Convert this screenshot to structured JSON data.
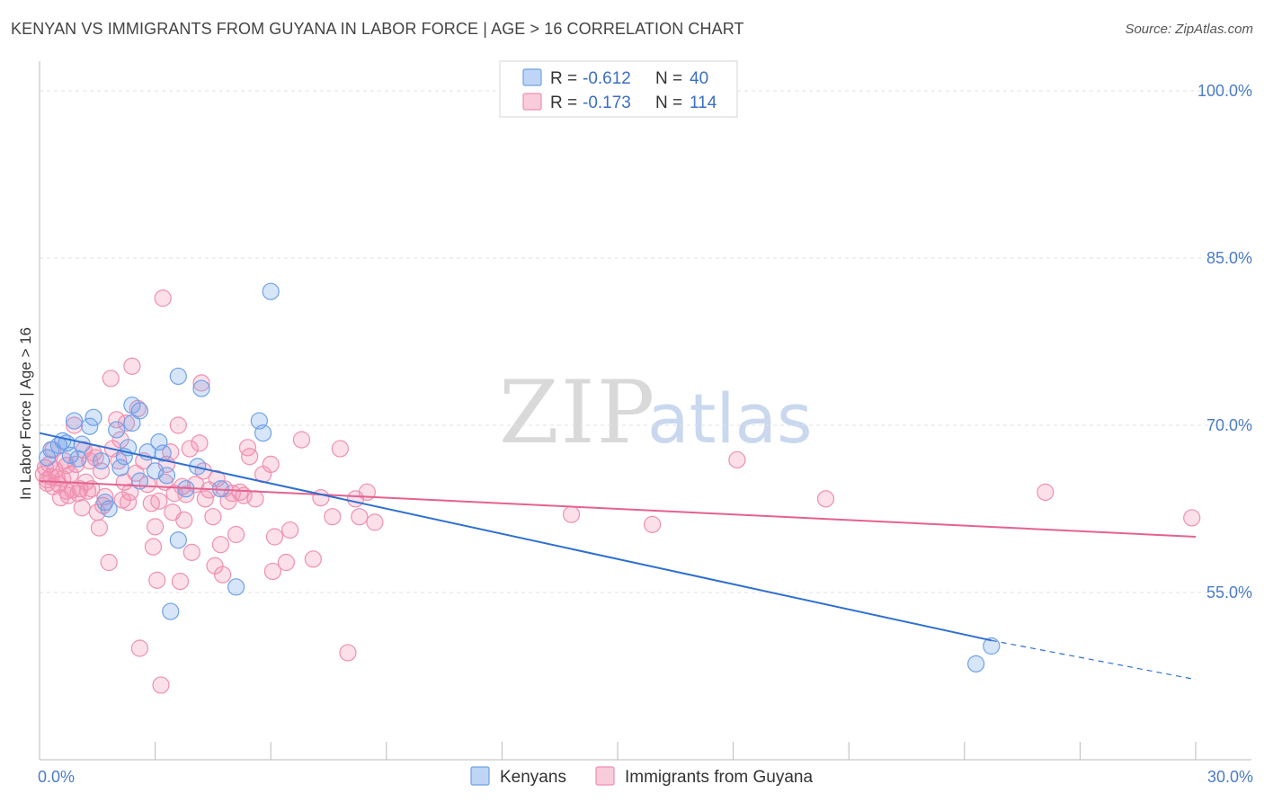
{
  "title": "KENYAN VS IMMIGRANTS FROM GUYANA IN LABOR FORCE | AGE > 16 CORRELATION CHART",
  "source": "Source: ZipAtlas.com",
  "watermark": {
    "zip": "ZIP",
    "atlas": "atlas"
  },
  "legend_top": [
    {
      "r_label": "R =",
      "r_value": "-0.612",
      "n_label": "N =",
      "n_value": "40",
      "color": "#6fa1e8"
    },
    {
      "r_label": "R =",
      "r_value": "-0.173",
      "n_label": "N =",
      "n_value": "114",
      "color": "#f08fb0"
    }
  ],
  "legend_bottom": [
    {
      "label": "Kenyans",
      "color": "#6fa1e8"
    },
    {
      "label": "Immigrants from Guyana",
      "color": "#f08fb0"
    }
  ],
  "chart_data": {
    "type": "scatter",
    "title": "KENYAN VS IMMIGRANTS FROM GUYANA IN LABOR FORCE | AGE > 16 CORRELATION CHART",
    "xlabel": "",
    "ylabel": "In Labor Force | Age > 16",
    "xlim": [
      0,
      30
    ],
    "ylim": [
      40,
      102.5
    ],
    "x_tick_labels": [
      {
        "value": 0,
        "label": "0.0%"
      },
      {
        "value": 30,
        "label": "30.0%"
      }
    ],
    "y_tick_labels": [
      {
        "value": 100,
        "label": "100.0%"
      },
      {
        "value": 85,
        "label": "85.0%"
      },
      {
        "value": 70,
        "label": "70.0%"
      },
      {
        "value": 55,
        "label": "55.0%"
      }
    ],
    "series": [
      {
        "name": "Kenyans",
        "color": "#6fa1e8",
        "line_color": "#2f6fd0",
        "trend": {
          "x0": 0,
          "y0": 69.3,
          "x1": 24.7,
          "y1": 50.7,
          "dash_to_x": 30,
          "dash_to_y": 47.2
        },
        "points": [
          [
            0.2,
            67.1
          ],
          [
            0.3,
            67.8
          ],
          [
            0.5,
            68.2
          ],
          [
            0.6,
            68.6
          ],
          [
            0.7,
            68.4
          ],
          [
            0.8,
            67.3
          ],
          [
            0.9,
            70.4
          ],
          [
            1.0,
            67.0
          ],
          [
            1.1,
            68.3
          ],
          [
            1.3,
            69.9
          ],
          [
            1.4,
            70.7
          ],
          [
            1.6,
            66.8
          ],
          [
            1.7,
            63.1
          ],
          [
            1.8,
            62.5
          ],
          [
            2.0,
            69.6
          ],
          [
            2.1,
            66.2
          ],
          [
            2.2,
            67.2
          ],
          [
            2.3,
            68.0
          ],
          [
            2.4,
            70.2
          ],
          [
            2.4,
            71.8
          ],
          [
            2.6,
            71.3
          ],
          [
            2.6,
            65.0
          ],
          [
            2.8,
            67.6
          ],
          [
            3.0,
            65.9
          ],
          [
            3.1,
            68.5
          ],
          [
            3.2,
            67.5
          ],
          [
            3.3,
            65.5
          ],
          [
            3.4,
            53.3
          ],
          [
            3.6,
            74.4
          ],
          [
            3.6,
            59.7
          ],
          [
            3.8,
            64.3
          ],
          [
            4.1,
            66.3
          ],
          [
            4.2,
            73.3
          ],
          [
            4.7,
            64.3
          ],
          [
            5.1,
            55.5
          ],
          [
            5.7,
            70.4
          ],
          [
            5.8,
            69.3
          ],
          [
            6.0,
            82.0
          ],
          [
            24.3,
            48.6
          ],
          [
            24.7,
            50.2
          ]
        ]
      },
      {
        "name": "Immigrants from Guyana",
        "color": "#f08fb0",
        "line_color": "#e4628e",
        "trend": {
          "x0": 0,
          "y0": 65.0,
          "x1": 30,
          "y1": 60.0
        },
        "points": [
          [
            0.1,
            65.6
          ],
          [
            0.15,
            66.2
          ],
          [
            0.2,
            65.1
          ],
          [
            0.2,
            64.8
          ],
          [
            0.25,
            66.5
          ],
          [
            0.3,
            65.4
          ],
          [
            0.35,
            64.5
          ],
          [
            0.4,
            66.0
          ],
          [
            0.45,
            65.3
          ],
          [
            0.5,
            64.7
          ],
          [
            0.55,
            63.5
          ],
          [
            0.6,
            65.2
          ],
          [
            0.65,
            66.8
          ],
          [
            0.7,
            64.1
          ],
          [
            0.75,
            63.7
          ],
          [
            0.8,
            65.6
          ],
          [
            0.85,
            64.2
          ],
          [
            0.9,
            70.0
          ],
          [
            0.95,
            66.5
          ],
          [
            1.0,
            63.9
          ],
          [
            1.05,
            64.3
          ],
          [
            1.1,
            62.6
          ],
          [
            1.15,
            67.8
          ],
          [
            1.2,
            64.9
          ],
          [
            1.25,
            64.1
          ],
          [
            1.3,
            66.8
          ],
          [
            1.35,
            64.3
          ],
          [
            1.4,
            67.5
          ],
          [
            1.5,
            62.2
          ],
          [
            1.55,
            60.8
          ],
          [
            1.6,
            65.9
          ],
          [
            1.65,
            62.8
          ],
          [
            1.7,
            63.6
          ],
          [
            1.8,
            57.7
          ],
          [
            1.85,
            74.2
          ],
          [
            1.9,
            67.9
          ],
          [
            2.0,
            70.5
          ],
          [
            2.05,
            66.8
          ],
          [
            2.1,
            68.7
          ],
          [
            2.15,
            63.3
          ],
          [
            2.2,
            64.9
          ],
          [
            2.3,
            63.1
          ],
          [
            2.35,
            64.0
          ],
          [
            2.4,
            75.3
          ],
          [
            2.5,
            65.7
          ],
          [
            2.55,
            71.5
          ],
          [
            2.6,
            50.0
          ],
          [
            2.7,
            66.8
          ],
          [
            2.8,
            64.7
          ],
          [
            2.9,
            63.0
          ],
          [
            2.95,
            59.1
          ],
          [
            3.0,
            60.9
          ],
          [
            3.05,
            56.1
          ],
          [
            3.1,
            63.2
          ],
          [
            3.15,
            46.7
          ],
          [
            3.2,
            81.4
          ],
          [
            3.3,
            66.5
          ],
          [
            3.4,
            67.6
          ],
          [
            3.45,
            62.2
          ],
          [
            3.5,
            63.9
          ],
          [
            3.6,
            70.0
          ],
          [
            3.65,
            56.0
          ],
          [
            3.7,
            64.5
          ],
          [
            3.75,
            61.5
          ],
          [
            3.8,
            63.8
          ],
          [
            3.9,
            67.9
          ],
          [
            3.95,
            58.6
          ],
          [
            4.05,
            64.7
          ],
          [
            4.15,
            68.4
          ],
          [
            4.2,
            73.8
          ],
          [
            4.3,
            63.4
          ],
          [
            4.4,
            64.2
          ],
          [
            4.5,
            61.8
          ],
          [
            4.55,
            57.4
          ],
          [
            4.6,
            65.2
          ],
          [
            4.7,
            59.3
          ],
          [
            4.75,
            56.6
          ],
          [
            4.8,
            64.3
          ],
          [
            4.9,
            63.2
          ],
          [
            5.0,
            63.9
          ],
          [
            5.1,
            60.2
          ],
          [
            5.2,
            64.0
          ],
          [
            5.3,
            63.7
          ],
          [
            5.4,
            68.0
          ],
          [
            5.45,
            67.2
          ],
          [
            5.6,
            63.4
          ],
          [
            5.8,
            65.6
          ],
          [
            6.0,
            66.5
          ],
          [
            6.05,
            56.9
          ],
          [
            6.1,
            60.0
          ],
          [
            6.4,
            57.7
          ],
          [
            6.5,
            60.6
          ],
          [
            6.8,
            68.7
          ],
          [
            7.1,
            58.0
          ],
          [
            7.3,
            63.5
          ],
          [
            7.6,
            61.8
          ],
          [
            7.8,
            67.9
          ],
          [
            8.0,
            49.6
          ],
          [
            8.2,
            63.4
          ],
          [
            8.3,
            61.8
          ],
          [
            8.5,
            64.0
          ],
          [
            8.7,
            61.3
          ],
          [
            13.8,
            62.0
          ],
          [
            15.9,
            61.1
          ],
          [
            18.1,
            66.9
          ],
          [
            20.4,
            63.4
          ],
          [
            26.1,
            64.0
          ],
          [
            29.9,
            61.7
          ],
          [
            0.35,
            67.8
          ],
          [
            1.45,
            67.1
          ],
          [
            2.25,
            70.2
          ],
          [
            3.25,
            64.9
          ],
          [
            4.25,
            65.9
          ],
          [
            0.7,
            66.4
          ]
        ]
      }
    ]
  }
}
